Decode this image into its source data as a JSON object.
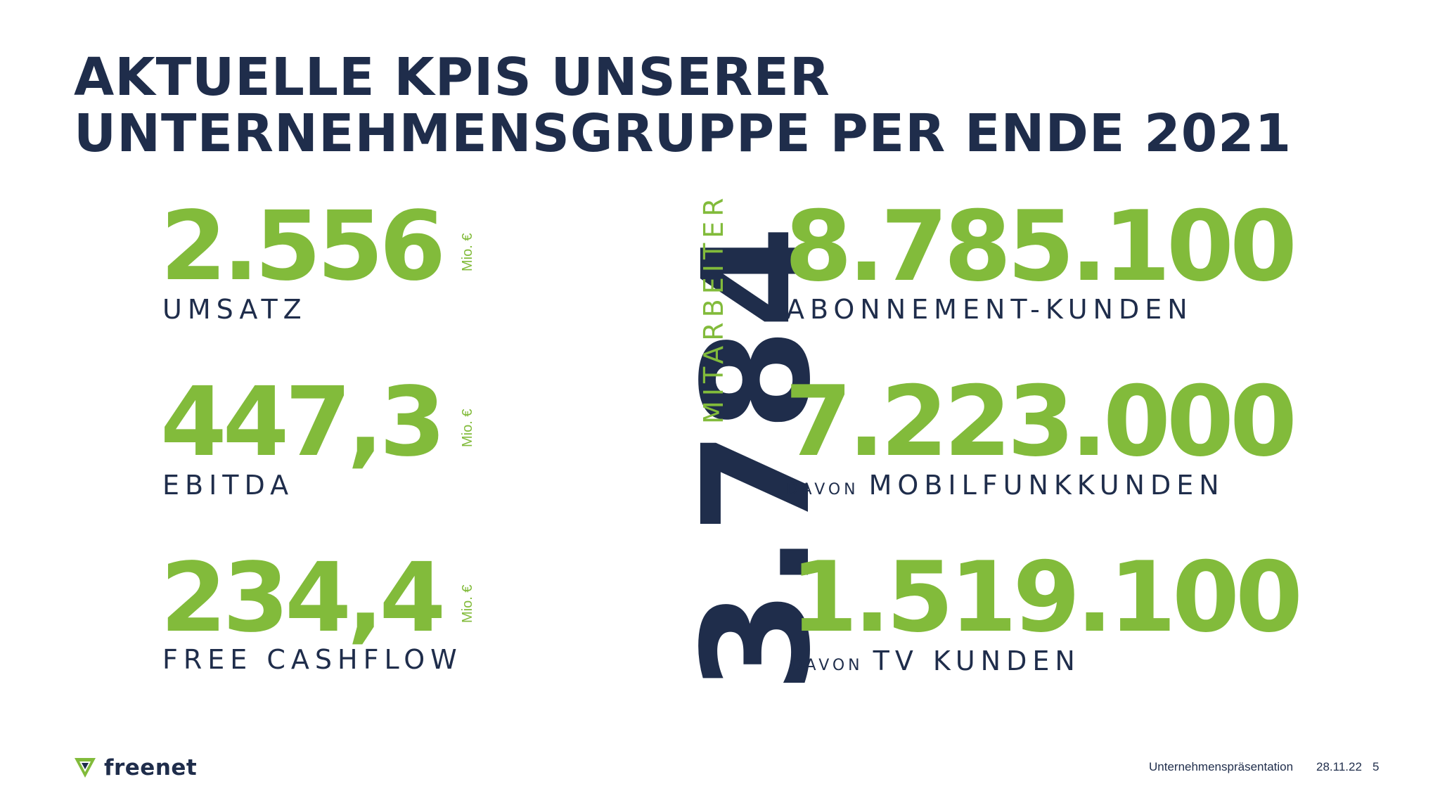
{
  "title": {
    "line1": "AKTUELLE KPIS UNSERER",
    "line2": "UNTERNEHMENSGRUPPE PER ENDE 2021"
  },
  "left_kpis": [
    {
      "value": "2.556",
      "unit": "Mio. €",
      "label": "UMSATZ"
    },
    {
      "value": "447,3",
      "unit": "Mio. €",
      "label": "EBITDA"
    },
    {
      "value": "234,4",
      "unit": "Mio. €",
      "label": "FREE CASHFLOW"
    }
  ],
  "center_kpi": {
    "value": "3.784",
    "label": "MITARBEITER"
  },
  "right_kpis": [
    {
      "value": "8.785.100",
      "prefix": "",
      "label": "ABONNEMENT-KUNDEN"
    },
    {
      "value": "7.223.000",
      "prefix": "DAVON",
      "label": "MOBILFUNKKUNDEN"
    },
    {
      "value": "1.519.100",
      "prefix": "DAVON",
      "label": "TV KUNDEN"
    }
  ],
  "footer": {
    "logo_text": "freenet",
    "presentation": "Unternehmenspräsentation",
    "date": "28.11.22",
    "page": "5"
  },
  "colors": {
    "navy": "#1f2d4b",
    "green": "#82bb3b"
  }
}
